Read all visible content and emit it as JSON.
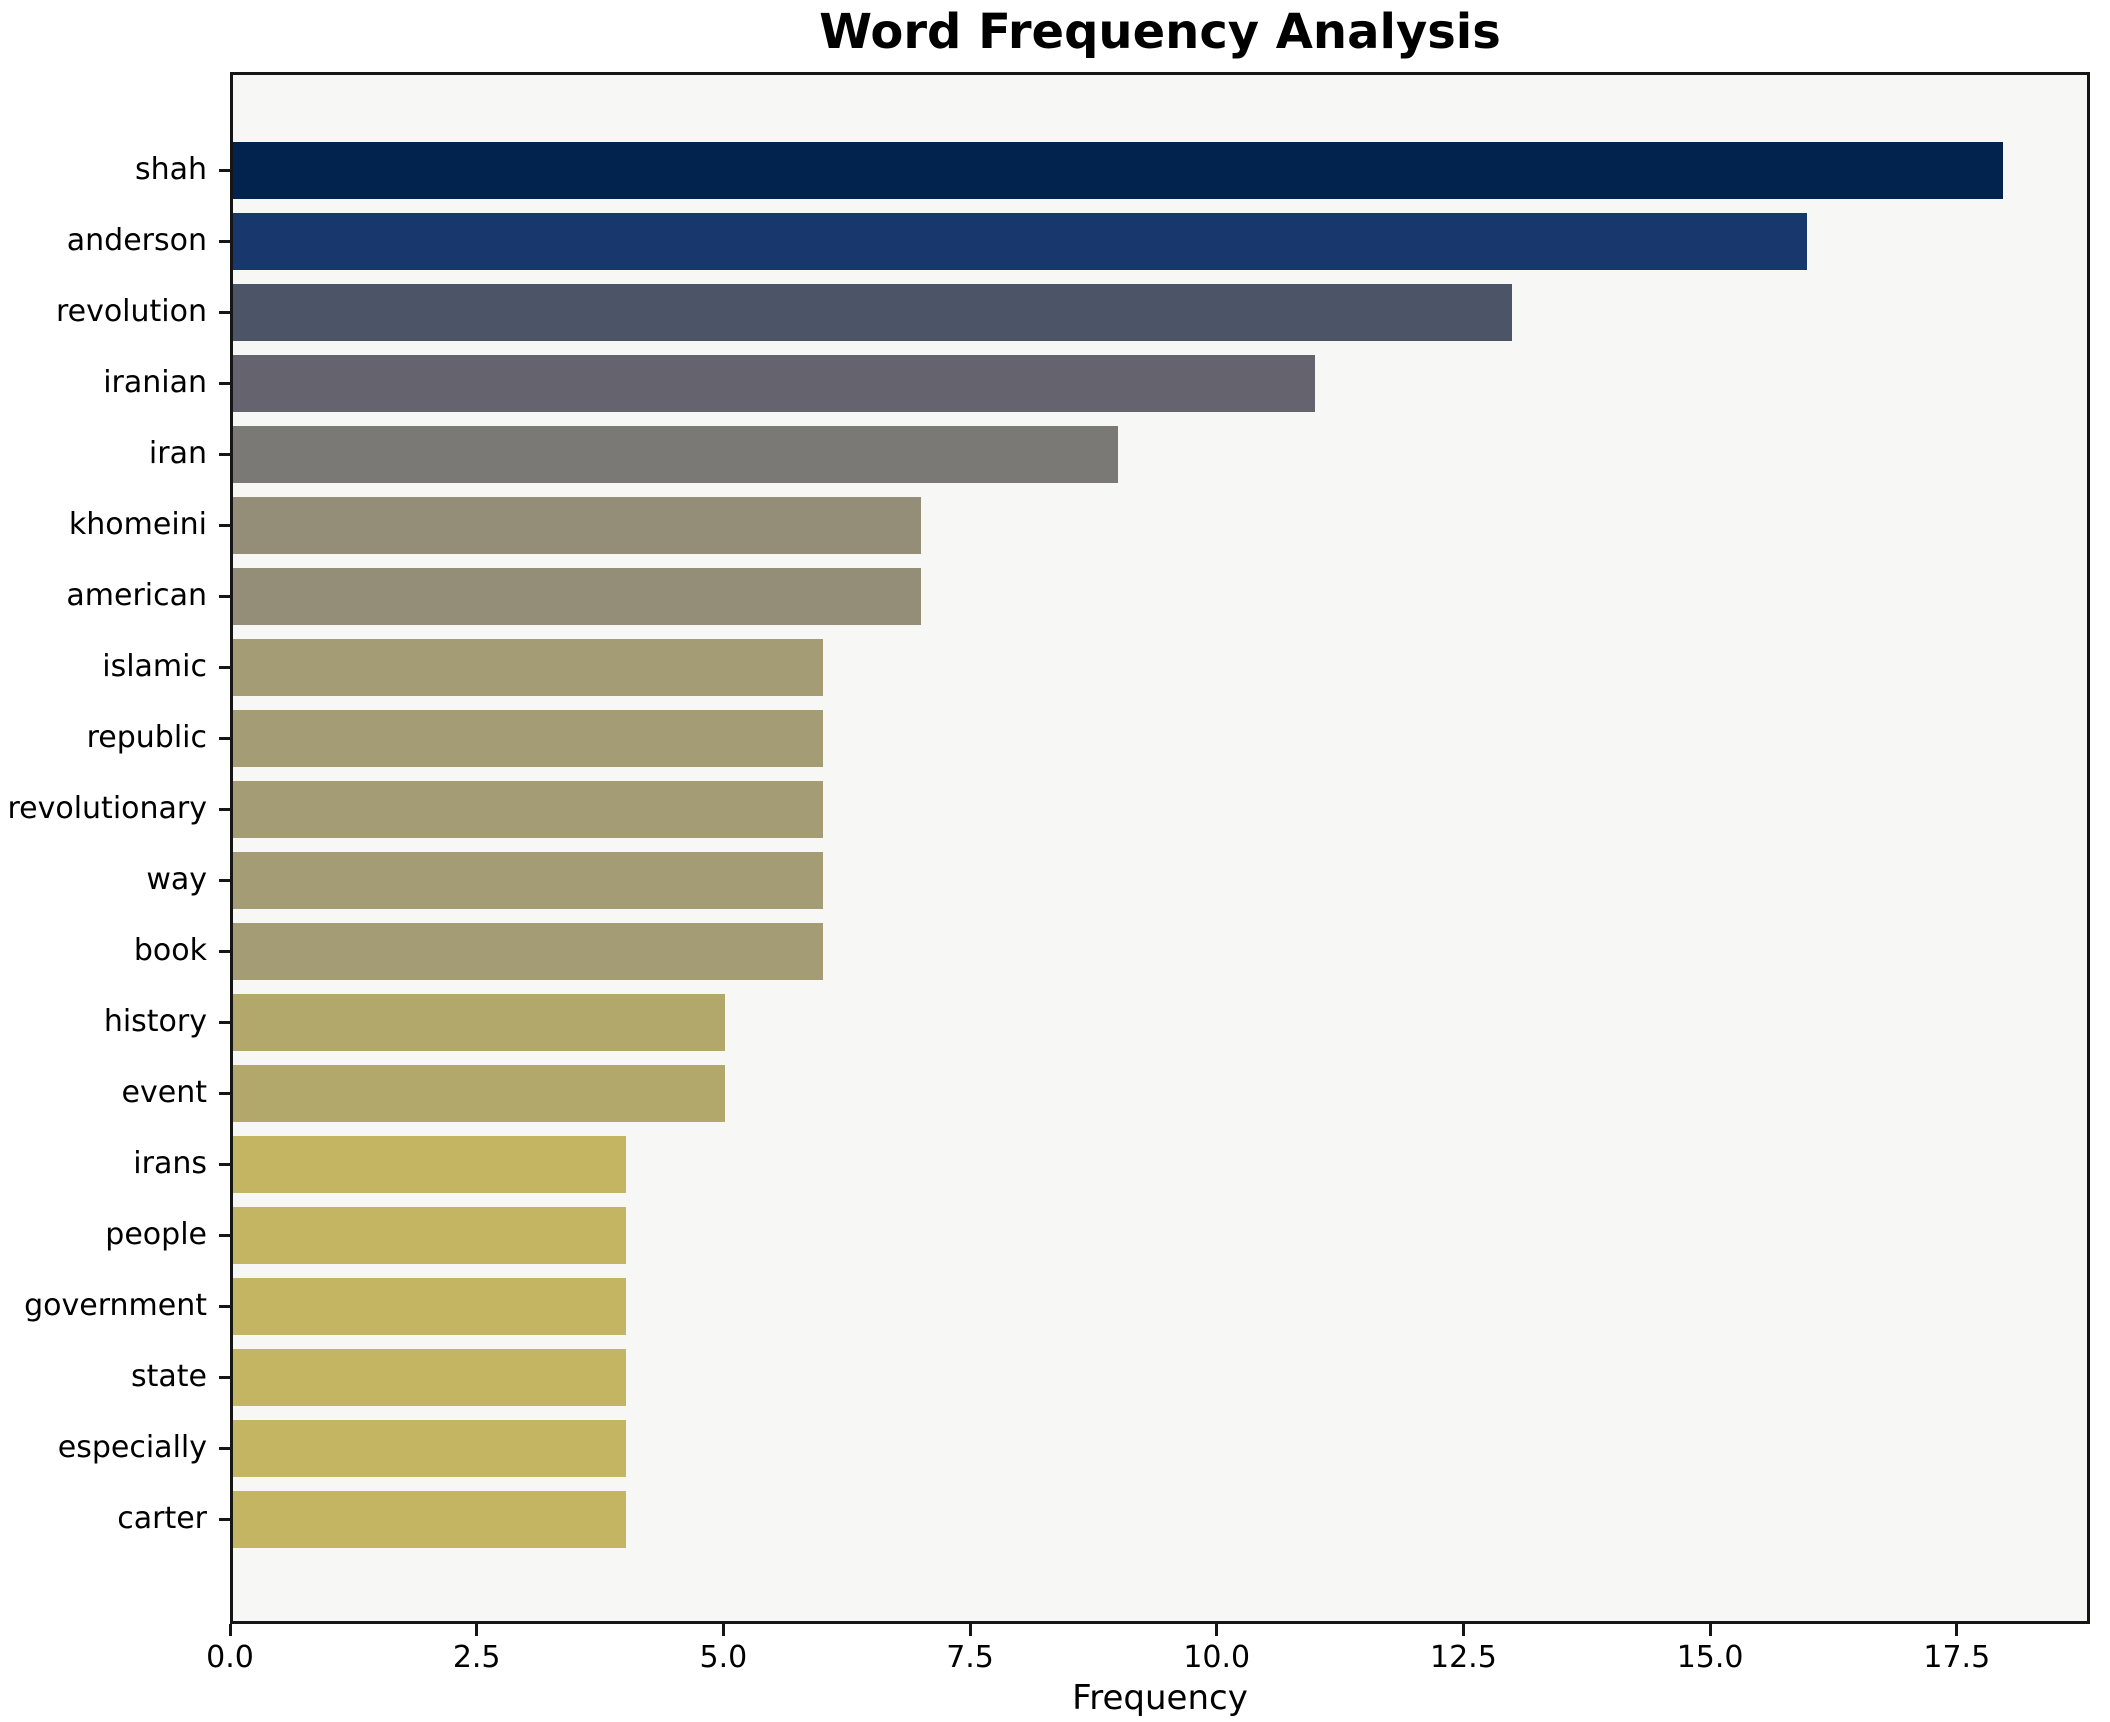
{
  "title": "Word Frequency Analysis",
  "colors": {
    "figure_background": "#ffffff",
    "axes_background": "#f7f7f6",
    "spine": "#161616",
    "text": "#000000"
  },
  "chart_data": {
    "type": "bar",
    "orientation": "horizontal",
    "title": "Word Frequency Analysis",
    "xlabel": "Frequency",
    "ylabel": "",
    "grid": false,
    "legend": false,
    "xlim": [
      0,
      18.85
    ],
    "xticks": [
      0.0,
      2.5,
      5.0,
      7.5,
      10.0,
      12.5,
      15.0,
      17.5
    ],
    "xtick_labels": [
      "0.0",
      "2.5",
      "5.0",
      "7.5",
      "10.0",
      "12.5",
      "15.0",
      "17.5"
    ],
    "categories": [
      "shah",
      "anderson",
      "revolution",
      "iranian",
      "iran",
      "khomeini",
      "american",
      "islamic",
      "republic",
      "revolutionary",
      "way",
      "book",
      "history",
      "event",
      "irans",
      "people",
      "government",
      "state",
      "especially",
      "carter"
    ],
    "values": [
      18,
      16,
      13,
      11,
      9,
      7,
      7,
      6,
      6,
      6,
      6,
      6,
      5,
      5,
      4,
      4,
      4,
      4,
      4,
      4
    ],
    "bar_colors": [
      "#02234e",
      "#18386d",
      "#4c5468",
      "#64636e",
      "#7a7975",
      "#948e78",
      "#948e78",
      "#a49c74",
      "#a49c74",
      "#a49c74",
      "#a49c74",
      "#a49c74",
      "#b2a86c",
      "#b2a86c",
      "#c4b563",
      "#c4b563",
      "#c4b563",
      "#c4b563",
      "#c4b563",
      "#c4b563"
    ]
  }
}
